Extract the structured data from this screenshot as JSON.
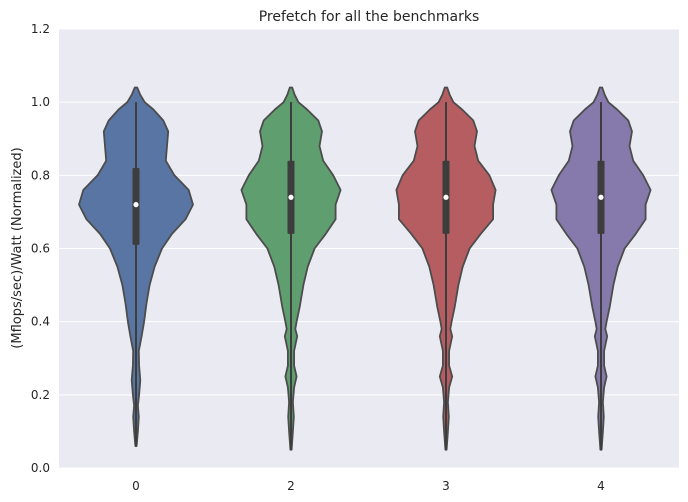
{
  "chart_data": {
    "type": "violin",
    "title": "Prefetch for all the benchmarks",
    "xlabel": "",
    "ylabel": "(Mflops/sec)/Watt (Normalized)",
    "ylim": [
      0.0,
      1.2
    ],
    "yticks": [
      "0.0",
      "0.2",
      "0.4",
      "0.6",
      "0.8",
      "1.0",
      "1.2"
    ],
    "grid": true,
    "legend": "none",
    "categories": [
      "0",
      "2",
      "3",
      "4"
    ],
    "colors": [
      "#5875a4",
      "#5f9e6e",
      "#b55d60",
      "#857aab"
    ],
    "series": [
      {
        "category": "0",
        "min": 0.06,
        "max": 1.04,
        "q1": 0.61,
        "median": 0.72,
        "q3": 0.82,
        "whisker_low": 0.06,
        "whisker_high": 1.0,
        "density": [
          [
            0.06,
            0.01
          ],
          [
            0.1,
            0.03
          ],
          [
            0.14,
            0.045
          ],
          [
            0.17,
            0.03
          ],
          [
            0.2,
            0.05
          ],
          [
            0.24,
            0.07
          ],
          [
            0.28,
            0.05
          ],
          [
            0.32,
            0.045
          ],
          [
            0.36,
            0.09
          ],
          [
            0.4,
            0.13
          ],
          [
            0.45,
            0.17
          ],
          [
            0.5,
            0.22
          ],
          [
            0.55,
            0.3
          ],
          [
            0.6,
            0.42
          ],
          [
            0.64,
            0.58
          ],
          [
            0.68,
            0.8
          ],
          [
            0.72,
            0.92
          ],
          [
            0.76,
            0.85
          ],
          [
            0.8,
            0.62
          ],
          [
            0.84,
            0.48
          ],
          [
            0.88,
            0.5
          ],
          [
            0.92,
            0.52
          ],
          [
            0.95,
            0.44
          ],
          [
            0.98,
            0.28
          ],
          [
            1.0,
            0.14
          ],
          [
            1.02,
            0.07
          ],
          [
            1.04,
            0.02
          ]
        ]
      },
      {
        "category": "2",
        "min": 0.05,
        "max": 1.04,
        "q1": 0.64,
        "median": 0.74,
        "q3": 0.84,
        "whisker_low": 0.05,
        "whisker_high": 1.0,
        "density": [
          [
            0.05,
            0.01
          ],
          [
            0.1,
            0.03
          ],
          [
            0.14,
            0.045
          ],
          [
            0.18,
            0.03
          ],
          [
            0.22,
            0.05
          ],
          [
            0.25,
            0.09
          ],
          [
            0.28,
            0.05
          ],
          [
            0.32,
            0.05
          ],
          [
            0.36,
            0.1
          ],
          [
            0.38,
            0.07
          ],
          [
            0.4,
            0.09
          ],
          [
            0.44,
            0.14
          ],
          [
            0.5,
            0.2
          ],
          [
            0.55,
            0.27
          ],
          [
            0.6,
            0.38
          ],
          [
            0.64,
            0.56
          ],
          [
            0.68,
            0.72
          ],
          [
            0.72,
            0.72
          ],
          [
            0.76,
            0.8
          ],
          [
            0.8,
            0.68
          ],
          [
            0.84,
            0.52
          ],
          [
            0.88,
            0.46
          ],
          [
            0.92,
            0.5
          ],
          [
            0.95,
            0.44
          ],
          [
            0.98,
            0.26
          ],
          [
            1.0,
            0.12
          ],
          [
            1.02,
            0.06
          ],
          [
            1.04,
            0.02
          ]
        ]
      },
      {
        "category": "3",
        "min": 0.05,
        "max": 1.04,
        "q1": 0.64,
        "median": 0.74,
        "q3": 0.84,
        "whisker_low": 0.05,
        "whisker_high": 1.0,
        "density": [
          [
            0.05,
            0.01
          ],
          [
            0.1,
            0.03
          ],
          [
            0.14,
            0.045
          ],
          [
            0.18,
            0.03
          ],
          [
            0.22,
            0.05
          ],
          [
            0.25,
            0.1
          ],
          [
            0.28,
            0.05
          ],
          [
            0.32,
            0.05
          ],
          [
            0.36,
            0.1
          ],
          [
            0.38,
            0.07
          ],
          [
            0.4,
            0.09
          ],
          [
            0.44,
            0.14
          ],
          [
            0.5,
            0.2
          ],
          [
            0.55,
            0.27
          ],
          [
            0.6,
            0.38
          ],
          [
            0.64,
            0.56
          ],
          [
            0.68,
            0.76
          ],
          [
            0.72,
            0.76
          ],
          [
            0.76,
            0.8
          ],
          [
            0.8,
            0.7
          ],
          [
            0.84,
            0.52
          ],
          [
            0.88,
            0.46
          ],
          [
            0.92,
            0.5
          ],
          [
            0.95,
            0.44
          ],
          [
            0.98,
            0.26
          ],
          [
            1.0,
            0.12
          ],
          [
            1.02,
            0.06
          ],
          [
            1.04,
            0.02
          ]
        ]
      },
      {
        "category": "4",
        "min": 0.05,
        "max": 1.04,
        "q1": 0.64,
        "median": 0.74,
        "q3": 0.84,
        "whisker_low": 0.05,
        "whisker_high": 1.0,
        "density": [
          [
            0.05,
            0.01
          ],
          [
            0.1,
            0.03
          ],
          [
            0.14,
            0.045
          ],
          [
            0.18,
            0.03
          ],
          [
            0.22,
            0.05
          ],
          [
            0.25,
            0.09
          ],
          [
            0.28,
            0.05
          ],
          [
            0.32,
            0.05
          ],
          [
            0.36,
            0.1
          ],
          [
            0.38,
            0.07
          ],
          [
            0.4,
            0.09
          ],
          [
            0.44,
            0.14
          ],
          [
            0.5,
            0.2
          ],
          [
            0.55,
            0.27
          ],
          [
            0.6,
            0.38
          ],
          [
            0.64,
            0.56
          ],
          [
            0.68,
            0.72
          ],
          [
            0.72,
            0.72
          ],
          [
            0.76,
            0.8
          ],
          [
            0.8,
            0.68
          ],
          [
            0.84,
            0.52
          ],
          [
            0.88,
            0.46
          ],
          [
            0.92,
            0.5
          ],
          [
            0.95,
            0.44
          ],
          [
            0.98,
            0.26
          ],
          [
            1.0,
            0.12
          ],
          [
            1.02,
            0.06
          ],
          [
            1.04,
            0.02
          ]
        ]
      }
    ]
  }
}
